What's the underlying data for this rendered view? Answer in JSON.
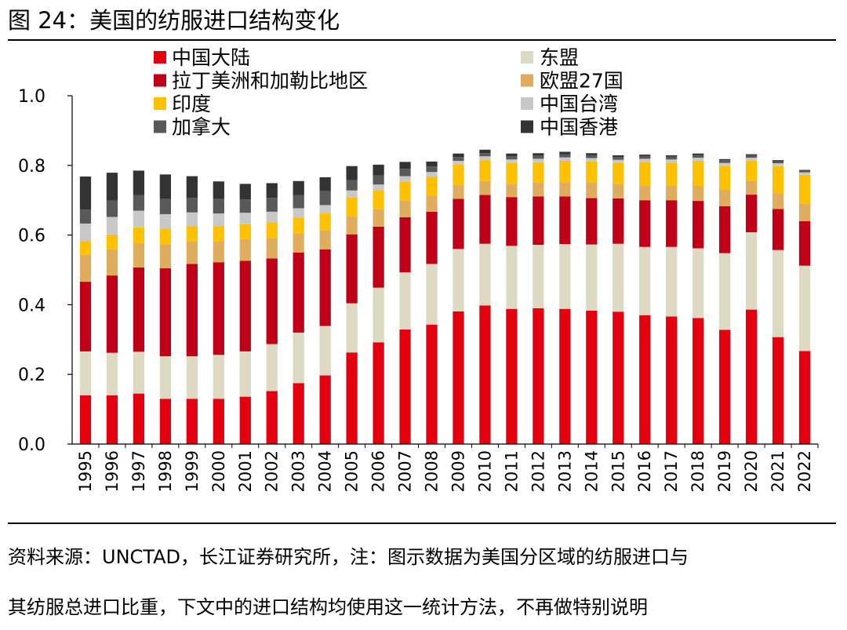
{
  "figure": {
    "title": "图 24：美国的纺服进口结构变化",
    "source_line1": "资料来源：UNCTAD，长江证券研究所，注：图示数据为美国分区域的纺服进口与",
    "source_line2": "其纺服总进口比重，下文中的进口结构均使用这一统计方法，不再做特别说明"
  },
  "chart_data": {
    "type": "bar",
    "stacked": true,
    "categories": [
      "1995",
      "1996",
      "1997",
      "1998",
      "1999",
      "2000",
      "2001",
      "2002",
      "2003",
      "2004",
      "2005",
      "2006",
      "2007",
      "2008",
      "2009",
      "2010",
      "2011",
      "2012",
      "2013",
      "2014",
      "2015",
      "2016",
      "2017",
      "2018",
      "2019",
      "2020",
      "2021",
      "2022"
    ],
    "ylim": [
      0,
      1.0
    ],
    "yticks": [
      "0.0",
      "0.2",
      "0.4",
      "0.6",
      "0.8",
      "1.0"
    ],
    "legend_position": "top",
    "series": [
      {
        "name": "中国大陆",
        "color": "#E3000F",
        "values": [
          0.14,
          0.14,
          0.145,
          0.13,
          0.13,
          0.13,
          0.136,
          0.152,
          0.175,
          0.197,
          0.263,
          0.292,
          0.329,
          0.343,
          0.381,
          0.398,
          0.388,
          0.39,
          0.388,
          0.383,
          0.38,
          0.37,
          0.366,
          0.362,
          0.328,
          0.386,
          0.307,
          0.267
        ]
      },
      {
        "name": "东盟",
        "color": "#DDD9C3",
        "values": [
          0.126,
          0.122,
          0.12,
          0.122,
          0.122,
          0.126,
          0.13,
          0.135,
          0.145,
          0.142,
          0.141,
          0.157,
          0.164,
          0.174,
          0.179,
          0.177,
          0.181,
          0.182,
          0.186,
          0.19,
          0.195,
          0.196,
          0.2,
          0.2,
          0.22,
          0.222,
          0.25,
          0.245
        ]
      },
      {
        "name": "拉丁美洲和加勒比地区",
        "color": "#C00018",
        "values": [
          0.2,
          0.222,
          0.242,
          0.253,
          0.265,
          0.266,
          0.26,
          0.246,
          0.23,
          0.22,
          0.198,
          0.175,
          0.158,
          0.15,
          0.144,
          0.14,
          0.14,
          0.139,
          0.137,
          0.133,
          0.13,
          0.134,
          0.134,
          0.136,
          0.135,
          0.108,
          0.118,
          0.128
        ]
      },
      {
        "name": "欧盟27国",
        "color": "#DEAD5E",
        "values": [
          0.077,
          0.075,
          0.07,
          0.068,
          0.065,
          0.06,
          0.062,
          0.058,
          0.055,
          0.055,
          0.052,
          0.05,
          0.048,
          0.046,
          0.04,
          0.04,
          0.038,
          0.04,
          0.04,
          0.045,
          0.042,
          0.042,
          0.042,
          0.043,
          0.048,
          0.04,
          0.045,
          0.05
        ]
      },
      {
        "name": "印度",
        "color": "#FFC000",
        "values": [
          0.04,
          0.043,
          0.045,
          0.044,
          0.043,
          0.043,
          0.043,
          0.046,
          0.045,
          0.048,
          0.055,
          0.055,
          0.055,
          0.055,
          0.058,
          0.06,
          0.06,
          0.058,
          0.062,
          0.06,
          0.06,
          0.068,
          0.066,
          0.072,
          0.068,
          0.058,
          0.078,
          0.083
        ]
      },
      {
        "name": "中国台湾",
        "color": "#C8C8C8",
        "values": [
          0.05,
          0.05,
          0.048,
          0.043,
          0.04,
          0.037,
          0.033,
          0.03,
          0.027,
          0.024,
          0.019,
          0.016,
          0.015,
          0.013,
          0.011,
          0.011,
          0.01,
          0.01,
          0.01,
          0.01,
          0.009,
          0.009,
          0.009,
          0.009,
          0.008,
          0.008,
          0.008,
          0.007
        ]
      },
      {
        "name": "加拿大",
        "color": "#595959",
        "values": [
          0.04,
          0.047,
          0.045,
          0.044,
          0.042,
          0.042,
          0.038,
          0.04,
          0.038,
          0.04,
          0.03,
          0.026,
          0.021,
          0.016,
          0.011,
          0.009,
          0.009,
          0.009,
          0.009,
          0.008,
          0.008,
          0.008,
          0.008,
          0.008,
          0.008,
          0.007,
          0.006,
          0.005
        ]
      },
      {
        "name": "中国香港",
        "color": "#333333",
        "values": [
          0.095,
          0.08,
          0.07,
          0.07,
          0.062,
          0.05,
          0.045,
          0.042,
          0.04,
          0.04,
          0.04,
          0.031,
          0.02,
          0.014,
          0.01,
          0.01,
          0.008,
          0.007,
          0.007,
          0.006,
          0.005,
          0.004,
          0.004,
          0.004,
          0.003,
          0.003,
          0.003,
          0.002
        ]
      }
    ],
    "legend_left": [
      "中国大陆",
      "拉丁美洲和加勒比地区",
      "印度",
      "加拿大"
    ],
    "legend_right": [
      "东盟",
      "欧盟27国",
      "中国台湾",
      "中国香港"
    ]
  }
}
